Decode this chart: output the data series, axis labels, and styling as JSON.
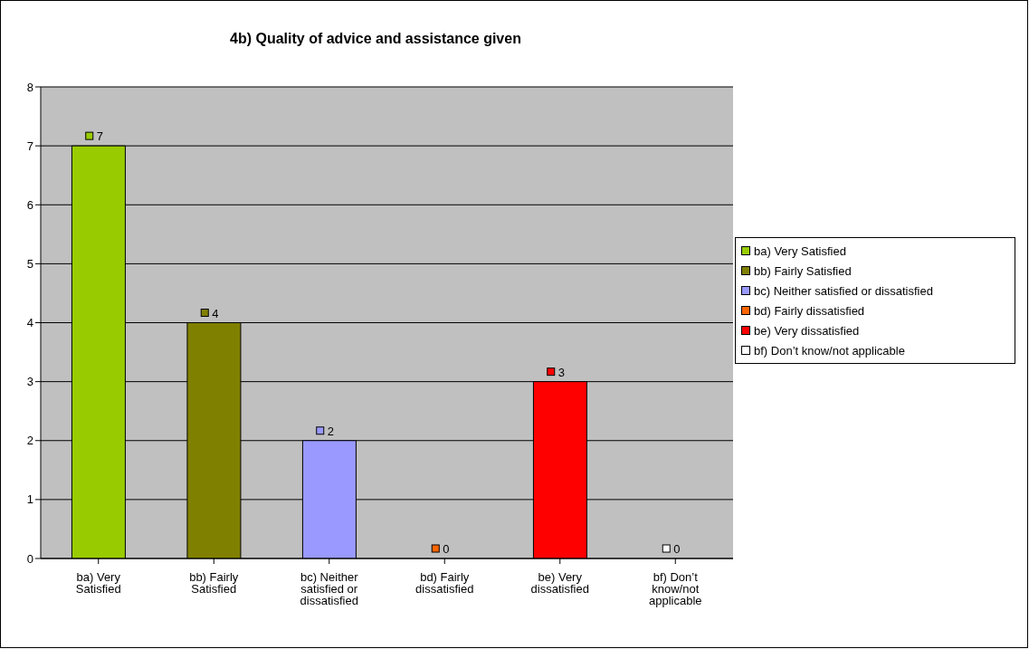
{
  "chart_data": {
    "type": "bar",
    "title": "4b) Quality of advice and assistance given",
    "categories": [
      "ba) Very Satisfied",
      "bb) Fairly Satisfied",
      "bc) Neither satisfied or dissatisfied",
      "bd) Fairly dissatisfied",
      "be) Very dissatisfied",
      "bf) Don’t know/not applicable"
    ],
    "series": [
      {
        "name": "ba) Very Satisfied",
        "color": "#99cc00",
        "values": [
          7,
          null,
          null,
          null,
          null,
          null
        ]
      },
      {
        "name": "bb) Fairly Satisfied",
        "color": "#808000",
        "values": [
          null,
          4,
          null,
          null,
          null,
          null
        ]
      },
      {
        "name": "bc) Neither satisfied or dissatisfied",
        "color": "#9999ff",
        "values": [
          null,
          null,
          2,
          null,
          null,
          null
        ]
      },
      {
        "name": "bd) Fairly dissatisfied",
        "color": "#ff6600",
        "values": [
          null,
          null,
          null,
          0,
          null,
          null
        ]
      },
      {
        "name": "be) Very dissatisfied",
        "color": "#ff0000",
        "values": [
          null,
          null,
          null,
          null,
          3,
          null
        ]
      },
      {
        "name": "bf) Don’t know/not applicable",
        "color": "#ffffff",
        "values": [
          null,
          null,
          null,
          null,
          null,
          0
        ]
      }
    ],
    "stacked": true,
    "ylim": [
      0,
      8
    ],
    "yticks": [
      0,
      1,
      2,
      3,
      4,
      5,
      6,
      7,
      8
    ],
    "grid": "y",
    "legend": "right",
    "data_labels": true
  }
}
